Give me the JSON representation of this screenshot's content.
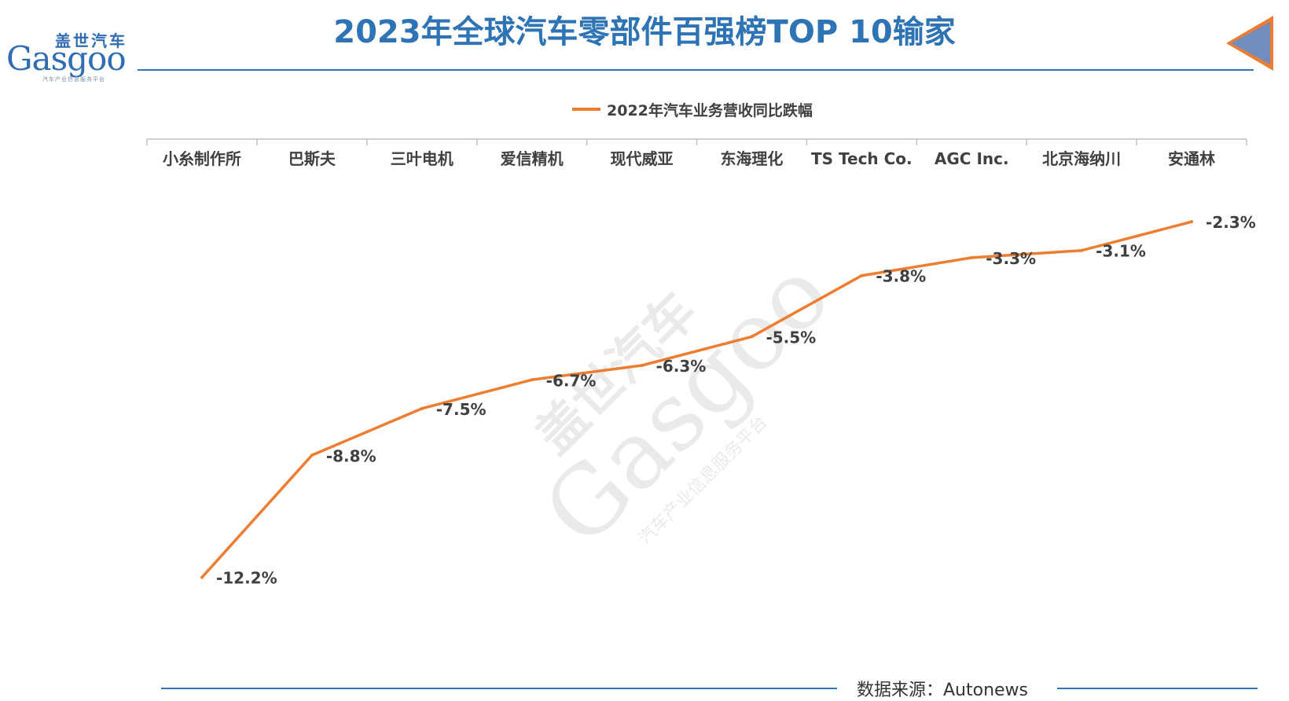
{
  "header": {
    "logo_cn": "盖世汽车",
    "logo_en": "Gasgoo",
    "logo_sub": "汽车产业信息服务平台",
    "title": "2023年全球汽车零部件百强榜TOP 10输家"
  },
  "footer": {
    "source": "数据来源：Autonews"
  },
  "watermark": {
    "text_cn": "盖世汽车",
    "text_en": "Gasgoo",
    "text_sub": "汽车产业信息服务平台"
  },
  "colors": {
    "title": "#2e74b5",
    "line": "#ed7d31",
    "axis": "#bfbfbf",
    "label": "#404040"
  },
  "chart_data": {
    "type": "line",
    "title": "2023年全球汽车零部件百强榜TOP 10输家",
    "categories": [
      "小糸制作所",
      "巴斯夫",
      "三叶电机",
      "爱信精机",
      "现代威亚",
      "东海理化",
      "TS Tech Co.",
      "AGC Inc.",
      "北京海纳川",
      "安通林"
    ],
    "series": [
      {
        "name": "2022年汽车业务营收同比跌幅",
        "values": [
          -12.2,
          -8.8,
          -7.5,
          -6.7,
          -6.3,
          -5.5,
          -3.8,
          -3.3,
          -3.1,
          -2.3
        ],
        "color": "#ed7d31"
      }
    ],
    "data_labels": [
      "-12.2%",
      "-8.8%",
      "-7.5%",
      "-6.7%",
      "-6.3%",
      "-5.5%",
      "-3.8%",
      "-3.3%",
      "-3.1%",
      "-2.3%"
    ],
    "xaxis_position": "top",
    "ylim": [
      -14,
      0
    ],
    "grid": false,
    "legend_position": "top"
  }
}
